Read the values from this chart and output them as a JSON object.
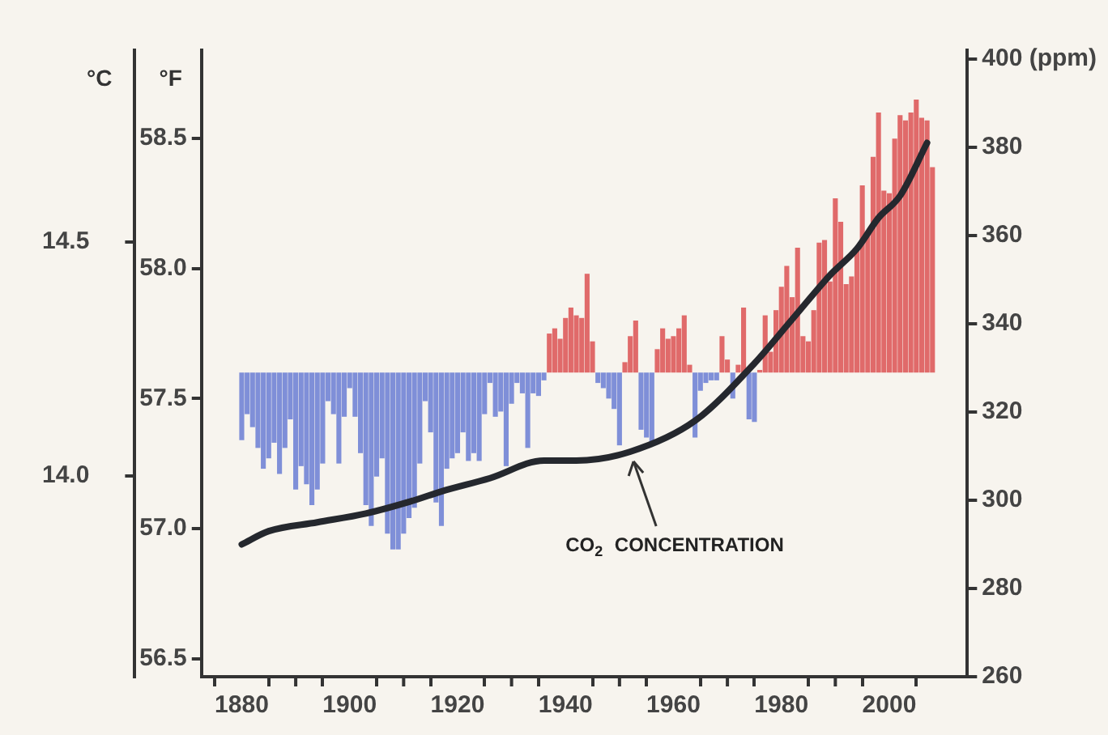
{
  "chart_data": {
    "type": "bar",
    "ylabel": "°F",
    "y3label": "°C",
    "x": [
      1880,
      1881,
      1882,
      1883,
      1884,
      1885,
      1886,
      1887,
      1888,
      1889,
      1890,
      1891,
      1892,
      1893,
      1894,
      1895,
      1896,
      1897,
      1898,
      1899,
      1900,
      1901,
      1902,
      1903,
      1904,
      1905,
      1906,
      1907,
      1908,
      1909,
      1910,
      1911,
      1912,
      1913,
      1914,
      1915,
      1916,
      1917,
      1918,
      1919,
      1920,
      1921,
      1922,
      1923,
      1924,
      1925,
      1926,
      1927,
      1928,
      1929,
      1930,
      1931,
      1932,
      1933,
      1934,
      1935,
      1936,
      1937,
      1938,
      1939,
      1940,
      1941,
      1942,
      1943,
      1944,
      1945,
      1946,
      1947,
      1948,
      1949,
      1950,
      1951,
      1952,
      1953,
      1954,
      1955,
      1956,
      1957,
      1958,
      1959,
      1960,
      1961,
      1962,
      1963,
      1964,
      1965,
      1966,
      1967,
      1968,
      1969,
      1970,
      1971,
      1972,
      1973,
      1974,
      1975,
      1976,
      1977,
      1978,
      1979,
      1980,
      1981,
      1982,
      1983,
      1984,
      1985,
      1986,
      1987,
      1988,
      1989,
      1990,
      1991,
      1992,
      1993,
      1994,
      1995,
      1996,
      1997,
      1998,
      1999,
      2000,
      2001,
      2002,
      2003,
      2004,
      2005,
      2006,
      2007,
      2008
    ],
    "series": [
      {
        "values": [
          -0.26,
          -0.16,
          -0.21,
          -0.29,
          -0.37,
          -0.33,
          -0.27,
          -0.39,
          -0.29,
          -0.18,
          -0.45,
          -0.36,
          -0.43,
          -0.51,
          -0.45,
          -0.35,
          -0.11,
          -0.16,
          -0.35,
          -0.17,
          -0.06,
          -0.17,
          -0.31,
          -0.51,
          -0.59,
          -0.4,
          -0.33,
          -0.62,
          -0.68,
          -0.68,
          -0.62,
          -0.56,
          -0.52,
          -0.35,
          -0.11,
          -0.23,
          -0.5,
          -0.59,
          -0.37,
          -0.33,
          -0.31,
          -0.23,
          -0.34,
          -0.31,
          -0.34,
          -0.16,
          -0.04,
          -0.17,
          -0.15,
          -0.36,
          -0.12,
          -0.04,
          -0.08,
          -0.29,
          -0.08,
          -0.09,
          -0.03,
          0.15,
          0.17,
          0.13,
          0.21,
          0.25,
          0.22,
          0.21,
          0.38,
          0.12,
          -0.04,
          -0.06,
          -0.1,
          -0.14,
          -0.28,
          0.04,
          0.14,
          0.2,
          -0.22,
          -0.25,
          -0.27,
          0.09,
          0.17,
          0.13,
          0.14,
          0.17,
          0.22,
          0.03,
          -0.25,
          -0.07,
          -0.04,
          -0.03,
          -0.03,
          0.14,
          0.05,
          -0.1,
          0.03,
          0.25,
          -0.18,
          -0.19,
          0.01,
          0.22,
          0.08,
          0.24,
          0.33,
          0.41,
          0.29,
          0.48,
          0.14,
          0.12,
          0.24,
          0.5,
          0.51,
          0.35,
          0.67,
          0.58,
          0.34,
          0.37,
          0.47,
          0.72,
          0.53,
          0.83,
          1.0,
          0.7,
          0.69,
          0.9,
          0.99,
          0.97,
          1.0,
          1.05,
          0.98,
          0.97,
          0.79
        ],
        "base": [
          57.6,
          57.6,
          57.6,
          57.6,
          57.6,
          57.6,
          57.6,
          57.6,
          57.6,
          57.6,
          57.6,
          57.6,
          57.6,
          57.6,
          57.6,
          57.6,
          57.6,
          57.6,
          57.6,
          57.6,
          57.6,
          57.6,
          57.6,
          57.6,
          57.6,
          57.6,
          57.6,
          57.6,
          57.6,
          57.6,
          57.6,
          57.6,
          57.6,
          57.6,
          57.6,
          57.6,
          57.6,
          57.6,
          57.6,
          57.6,
          57.6,
          57.6,
          57.6,
          57.6,
          57.6,
          57.6,
          57.6,
          57.6,
          57.6,
          57.6,
          57.6,
          57.6,
          57.6,
          57.6,
          57.6,
          57.6,
          57.6,
          57.6,
          57.6,
          57.6,
          57.6,
          57.6,
          57.6,
          57.6,
          57.6,
          57.6,
          57.6,
          57.6,
          57.6,
          57.6,
          57.6,
          57.6,
          57.6,
          57.6,
          57.6,
          57.6,
          57.6,
          57.6,
          57.6,
          57.6,
          57.6,
          57.6,
          57.6,
          57.6,
          57.6,
          57.6,
          57.6,
          57.6,
          57.6,
          57.6,
          57.6,
          57.6,
          57.6,
          57.6,
          57.6,
          57.6,
          57.6,
          57.6,
          57.6,
          57.6,
          57.6,
          57.6,
          57.6,
          57.6,
          57.6,
          57.6,
          57.6,
          57.6,
          57.6,
          57.6,
          57.6,
          57.6,
          57.6,
          57.6,
          57.6,
          57.6,
          57.6,
          57.6,
          57.6,
          57.6,
          57.6,
          57.6,
          57.6,
          57.6,
          57.6,
          57.6,
          57.6,
          57.6,
          57.6
        ],
        "colors": [
          "#7f8fd8",
          "#7f8fd8",
          "#7f8fd8",
          "#7f8fd8",
          "#7f8fd8",
          "#7f8fd8",
          "#7f8fd8",
          "#7f8fd8",
          "#7f8fd8",
          "#7f8fd8",
          "#7f8fd8",
          "#7f8fd8",
          "#7f8fd8",
          "#7f8fd8",
          "#7f8fd8",
          "#7f8fd8",
          "#7f8fd8",
          "#7f8fd8",
          "#7f8fd8",
          "#7f8fd8",
          "#7f8fd8",
          "#7f8fd8",
          "#7f8fd8",
          "#7f8fd8",
          "#7f8fd8",
          "#7f8fd8",
          "#7f8fd8",
          "#7f8fd8",
          "#7f8fd8",
          "#7f8fd8",
          "#7f8fd8",
          "#7f8fd8",
          "#7f8fd8",
          "#7f8fd8",
          "#7f8fd8",
          "#7f8fd8",
          "#7f8fd8",
          "#7f8fd8",
          "#7f8fd8",
          "#7f8fd8",
          "#7f8fd8",
          "#7f8fd8",
          "#7f8fd8",
          "#7f8fd8",
          "#7f8fd8",
          "#7f8fd8",
          "#7f8fd8",
          "#7f8fd8",
          "#7f8fd8",
          "#7f8fd8",
          "#7f8fd8",
          "#7f8fd8",
          "#7f8fd8",
          "#7f8fd8",
          "#7f8fd8",
          "#7f8fd8",
          "#7f8fd8",
          "#e06a6a",
          "#e06a6a",
          "#e06a6a",
          "#e06a6a",
          "#e06a6a",
          "#e06a6a",
          "#e06a6a",
          "#e06a6a",
          "#e06a6a",
          "#7f8fd8",
          "#7f8fd8",
          "#7f8fd8",
          "#7f8fd8",
          "#7f8fd8",
          "#e06a6a",
          "#e06a6a",
          "#e06a6a",
          "#7f8fd8",
          "#7f8fd8",
          "#7f8fd8",
          "#e06a6a",
          "#e06a6a",
          "#e06a6a",
          "#e06a6a",
          "#e06a6a",
          "#e06a6a",
          "#e06a6a",
          "#7f8fd8",
          "#7f8fd8",
          "#7f8fd8",
          "#7f8fd8",
          "#7f8fd8",
          "#e06a6a",
          "#e06a6a",
          "#7f8fd8",
          "#e06a6a",
          "#e06a6a",
          "#7f8fd8",
          "#7f8fd8",
          "#e06a6a",
          "#e06a6a",
          "#e06a6a",
          "#e06a6a",
          "#e06a6a",
          "#e06a6a",
          "#e06a6a",
          "#e06a6a",
          "#e06a6a",
          "#e06a6a",
          "#e06a6a",
          "#e06a6a",
          "#e06a6a",
          "#e06a6a",
          "#e06a6a",
          "#e06a6a",
          "#e06a6a",
          "#e06a6a",
          "#e06a6a",
          "#e06a6a",
          "#e06a6a",
          "#e06a6a",
          "#e06a6a",
          "#e06a6a",
          "#e06a6a",
          "#e06a6a",
          "#e06a6a",
          "#e06a6a",
          "#e06a6a",
          "#e06a6a",
          "#e06a6a",
          "#e06a6a",
          "#e06a6a"
        ]
      },
      {
        "type": "line",
        "name": "CO$_{2}$ CONCENTRATION",
        "color": "#25282e",
        "axis": "y2",
        "x": [
          1880,
          1885,
          1894,
          1903,
          1912,
          1917,
          1926,
          1936,
          1942,
          1952,
          1964,
          1975,
          1982,
          1989,
          1994,
          1998,
          2002,
          2007
        ],
        "values": [
          290,
          293,
          295,
          297,
          300,
          302,
          305,
          309,
          309,
          311,
          318,
          331,
          341,
          351,
          357,
          364,
          369,
          381
        ]
      }
    ],
    "xlim": [
      1878,
      2009
    ],
    "xticks": [
      1880,
      {
        "value": 1890,
        "label": null
      },
      1900,
      {
        "value": 1910,
        "label": null
      },
      1920,
      {
        "value": 1930,
        "label": null
      },
      1940,
      {
        "value": 1950,
        "label": null
      },
      1960,
      {
        "value": 1970,
        "label": null
      },
      1980,
      {
        "value": 1990,
        "label": null
      },
      2000
    ],
    "ylim": [
      56.43,
      58.84
    ],
    "yticks": [
      56.5,
      {
        "value": 57,
        "label": "57.0"
      },
      57.5,
      {
        "value": 58,
        "label": "58.0"
      },
      58.5
    ],
    "y3lim": [
      13.57,
      14.91
    ],
    "y3ticks": [
      {
        "value": 14,
        "label": "14.0"
      },
      14.5
    ],
    "y2lim": [
      260,
      402
    ],
    "y2ticks": [
      260,
      280,
      300,
      320,
      340,
      360,
      380,
      {
        "value": 400,
        "label": "400 (ppm)"
      }
    ]
  }
}
